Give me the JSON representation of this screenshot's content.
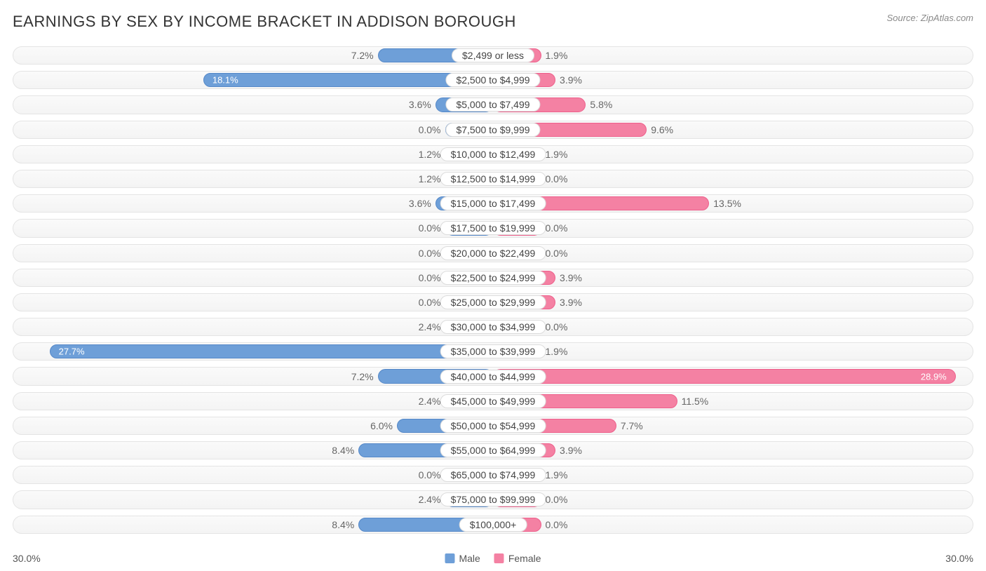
{
  "title": "EARNINGS BY SEX BY INCOME BRACKET IN ADDISON BOROUGH",
  "source": "Source: ZipAtlas.com",
  "axis_max": 30.0,
  "axis_label_left": "30.0%",
  "axis_label_right": "30.0%",
  "min_bar_pct": 3.0,
  "colors": {
    "male": "#6e9fd8",
    "male_border": "#5588c8",
    "female": "#f481a3",
    "female_border": "#ee5f8b",
    "track_border": "#e4e4e4",
    "background": "#ffffff",
    "text": "#555555"
  },
  "legend": {
    "male": "Male",
    "female": "Female"
  },
  "rows": [
    {
      "label": "$2,499 or less",
      "male": 7.2,
      "female": 1.9
    },
    {
      "label": "$2,500 to $4,999",
      "male": 18.1,
      "female": 3.9
    },
    {
      "label": "$5,000 to $7,499",
      "male": 3.6,
      "female": 5.8
    },
    {
      "label": "$7,500 to $9,999",
      "male": 0.0,
      "female": 9.6
    },
    {
      "label": "$10,000 to $12,499",
      "male": 1.2,
      "female": 1.9
    },
    {
      "label": "$12,500 to $14,999",
      "male": 1.2,
      "female": 0.0
    },
    {
      "label": "$15,000 to $17,499",
      "male": 3.6,
      "female": 13.5
    },
    {
      "label": "$17,500 to $19,999",
      "male": 0.0,
      "female": 0.0
    },
    {
      "label": "$20,000 to $22,499",
      "male": 0.0,
      "female": 0.0
    },
    {
      "label": "$22,500 to $24,999",
      "male": 0.0,
      "female": 3.9
    },
    {
      "label": "$25,000 to $29,999",
      "male": 0.0,
      "female": 3.9
    },
    {
      "label": "$30,000 to $34,999",
      "male": 2.4,
      "female": 0.0
    },
    {
      "label": "$35,000 to $39,999",
      "male": 27.7,
      "female": 1.9
    },
    {
      "label": "$40,000 to $44,999",
      "male": 7.2,
      "female": 28.9
    },
    {
      "label": "$45,000 to $49,999",
      "male": 2.4,
      "female": 11.5
    },
    {
      "label": "$50,000 to $54,999",
      "male": 6.0,
      "female": 7.7
    },
    {
      "label": "$55,000 to $64,999",
      "male": 8.4,
      "female": 3.9
    },
    {
      "label": "$65,000 to $74,999",
      "male": 0.0,
      "female": 1.9
    },
    {
      "label": "$75,000 to $99,999",
      "male": 2.4,
      "female": 0.0
    },
    {
      "label": "$100,000+",
      "male": 8.4,
      "female": 0.0
    }
  ]
}
